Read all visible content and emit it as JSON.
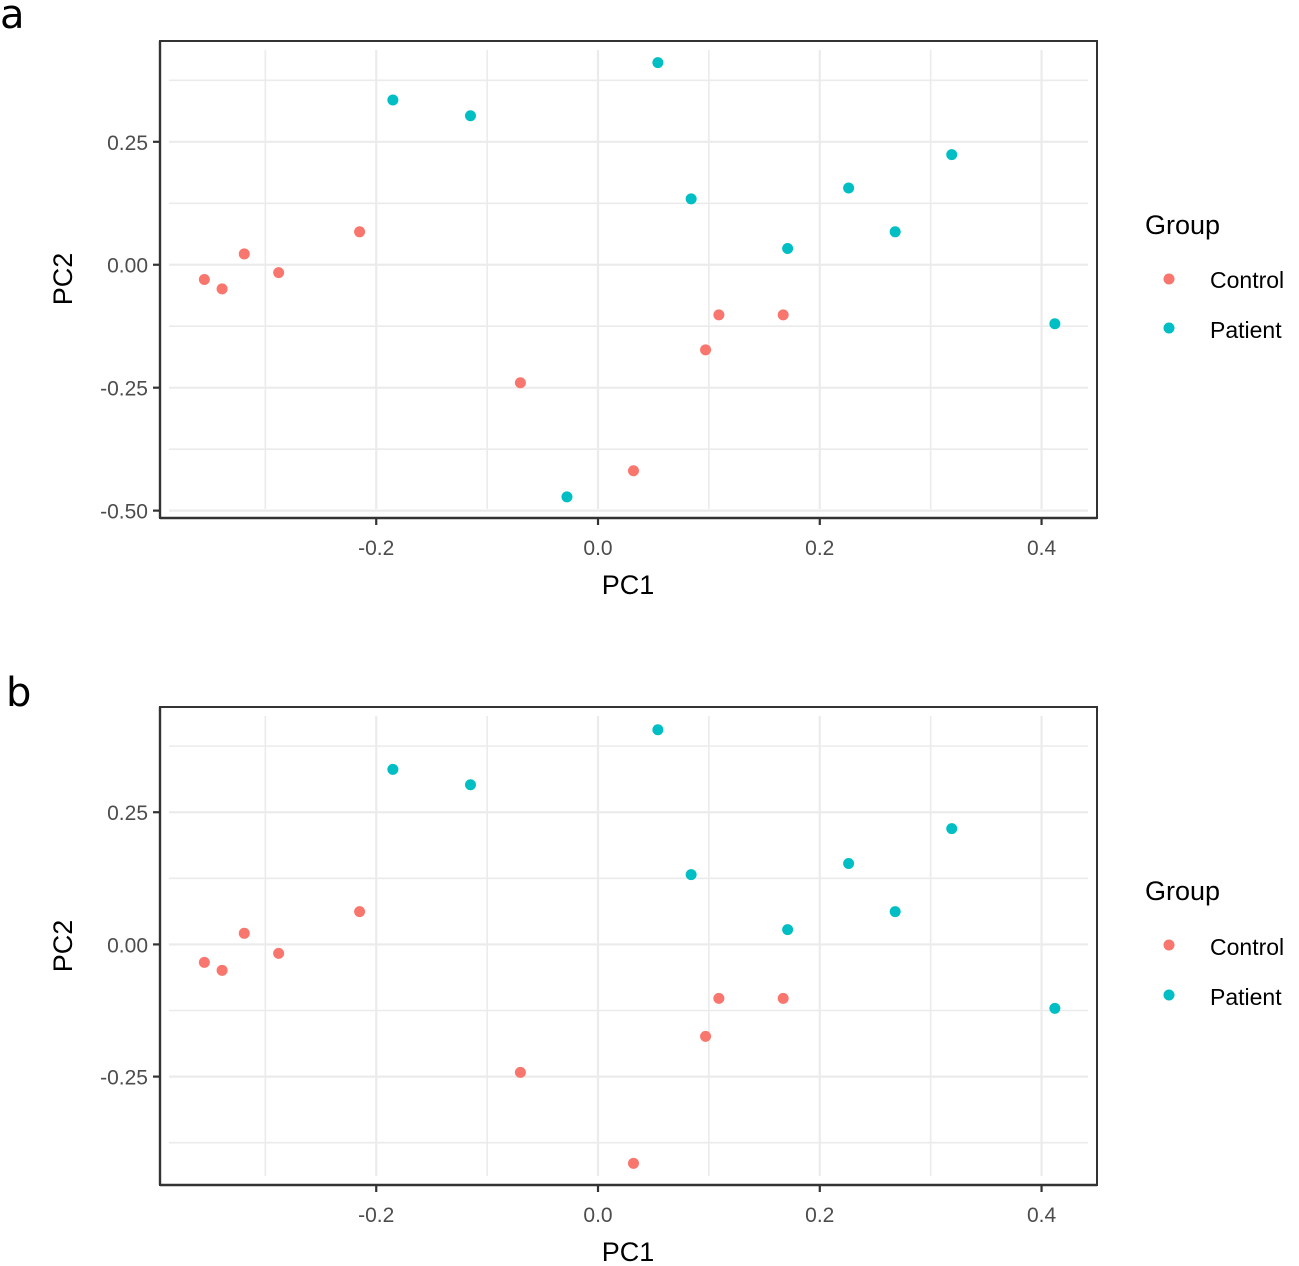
{
  "figure": {
    "panels": [
      "a",
      "b"
    ]
  },
  "colors": {
    "Control": "#F8766D",
    "Patient": "#00BFC4"
  },
  "chart_data": [
    {
      "panel_label": "a",
      "type": "scatter",
      "title": "",
      "xlabel": "PC1",
      "ylabel": "PC2",
      "xlim": [
        -0.395,
        0.45
      ],
      "ylim": [
        -0.515,
        0.455
      ],
      "xticks": [
        -0.2,
        0.0,
        0.2,
        0.4
      ],
      "xtick_labels": [
        "-0.2",
        "0.0",
        "0.2",
        "0.4"
      ],
      "xminor": [
        -0.3,
        -0.1,
        0.1,
        0.3
      ],
      "yticks": [
        0.25,
        0.0,
        -0.25,
        -0.5
      ],
      "ytick_labels": [
        "0.25",
        "0.00",
        "-0.25",
        "-0.50"
      ],
      "yminor": [
        0.375,
        0.125,
        -0.125,
        -0.375
      ],
      "grid": true,
      "legend": {
        "title": "Group",
        "position": "right",
        "entries": [
          "Control",
          "Patient"
        ]
      },
      "series": [
        {
          "name": "Control",
          "points": [
            {
              "x": -0.355,
              "y": -0.03
            },
            {
              "x": -0.339,
              "y": -0.049
            },
            {
              "x": -0.319,
              "y": 0.022
            },
            {
              "x": -0.288,
              "y": -0.016
            },
            {
              "x": -0.215,
              "y": 0.067
            },
            {
              "x": -0.07,
              "y": -0.24
            },
            {
              "x": 0.032,
              "y": -0.419
            },
            {
              "x": 0.097,
              "y": -0.173
            },
            {
              "x": 0.109,
              "y": -0.102
            },
            {
              "x": 0.167,
              "y": -0.102
            }
          ]
        },
        {
          "name": "Patient",
          "points": [
            {
              "x": -0.185,
              "y": 0.335
            },
            {
              "x": -0.115,
              "y": 0.303
            },
            {
              "x": 0.054,
              "y": 0.411
            },
            {
              "x": 0.084,
              "y": 0.134
            },
            {
              "x": 0.171,
              "y": 0.033
            },
            {
              "x": 0.226,
              "y": 0.156
            },
            {
              "x": 0.268,
              "y": 0.067
            },
            {
              "x": 0.319,
              "y": 0.224
            },
            {
              "x": 0.412,
              "y": -0.12
            },
            {
              "x": -0.028,
              "y": -0.472
            }
          ]
        }
      ]
    },
    {
      "panel_label": "b",
      "type": "scatter",
      "title": "",
      "xlabel": "PC1",
      "ylabel": "PC2",
      "xlim": [
        -0.395,
        0.45
      ],
      "ylim": [
        -0.455,
        0.449
      ],
      "xticks": [
        -0.2,
        0.0,
        0.2,
        0.4
      ],
      "xtick_labels": [
        "-0.2",
        "0.0",
        "0.2",
        "0.4"
      ],
      "xminor": [
        -0.3,
        -0.1,
        0.1,
        0.3
      ],
      "yticks": [
        0.25,
        0.0,
        -0.25
      ],
      "ytick_labels": [
        "0.25",
        "0.00",
        "-0.25"
      ],
      "yminor": [
        0.375,
        0.125,
        -0.125,
        -0.375
      ],
      "grid": true,
      "legend": {
        "title": "Group",
        "position": "right",
        "entries": [
          "Control",
          "Patient"
        ]
      },
      "series": [
        {
          "name": "Control",
          "points": [
            {
              "x": -0.355,
              "y": -0.034
            },
            {
              "x": -0.339,
              "y": -0.049
            },
            {
              "x": -0.319,
              "y": 0.021
            },
            {
              "x": -0.288,
              "y": -0.017
            },
            {
              "x": -0.215,
              "y": 0.062
            },
            {
              "x": -0.07,
              "y": -0.242
            },
            {
              "x": 0.032,
              "y": -0.414
            },
            {
              "x": 0.097,
              "y": -0.174
            },
            {
              "x": 0.109,
              "y": -0.102
            },
            {
              "x": 0.167,
              "y": -0.102
            }
          ]
        },
        {
          "name": "Patient",
          "points": [
            {
              "x": -0.185,
              "y": 0.331
            },
            {
              "x": -0.115,
              "y": 0.302
            },
            {
              "x": 0.054,
              "y": 0.406
            },
            {
              "x": 0.084,
              "y": 0.132
            },
            {
              "x": 0.171,
              "y": 0.028
            },
            {
              "x": 0.226,
              "y": 0.153
            },
            {
              "x": 0.268,
              "y": 0.062
            },
            {
              "x": 0.319,
              "y": 0.219
            },
            {
              "x": 0.412,
              "y": -0.121
            }
          ]
        }
      ]
    }
  ]
}
